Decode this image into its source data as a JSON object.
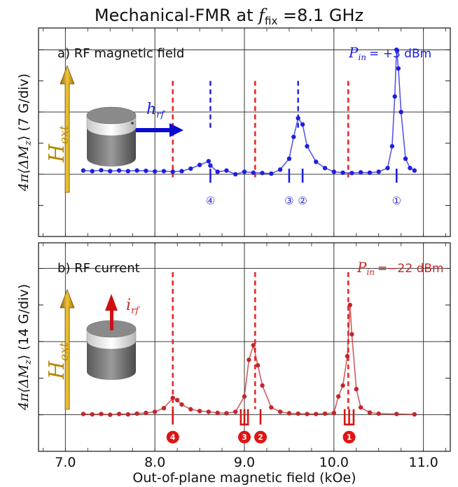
{
  "title_parts": {
    "pre": "Mechanical-FMR at ",
    "var": "f",
    "sub": "fix",
    "post": " =8.1 GHz"
  },
  "xlabel": "Out-of-plane magnetic field (kOe)",
  "x_ticks": [
    "7.0",
    "8.0",
    "9.0",
    "10.0",
    "11.0"
  ],
  "colors": {
    "blue": "#1f1fe0",
    "red": "#c0272d",
    "dashed": "#e8282a",
    "gold": "#d4a514"
  },
  "chart_data": [
    {
      "type": "line",
      "panel": "a",
      "label": "a) RF magnetic field",
      "power": {
        "var": "P",
        "sub": "in",
        "value": "= +3 dBm"
      },
      "ylabel": "4π⟨ΔM_z⟩ (7 G/div)",
      "ylabel_parts": {
        "pre": "4π⟨ΔM",
        "sub": "z",
        "post": "⟩ (7 G/div)"
      },
      "xlim": [
        6.7,
        11.3
      ],
      "ylim": [
        -2,
        4.7
      ],
      "y_unit_per_div": 7,
      "excitation_label": "h",
      "excitation_sub": "rf",
      "field_label": "H",
      "field_sub": "ext",
      "series": [
        {
          "color": "blue",
          "points": [
            [
              7.2,
              0.12
            ],
            [
              7.3,
              0.1
            ],
            [
              7.4,
              0.13
            ],
            [
              7.5,
              0.1
            ],
            [
              7.6,
              0.12
            ],
            [
              7.7,
              0.1
            ],
            [
              7.8,
              0.12
            ],
            [
              7.9,
              0.11
            ],
            [
              8.0,
              0.09
            ],
            [
              8.1,
              0.1
            ],
            [
              8.2,
              0.08
            ],
            [
              8.3,
              0.1
            ],
            [
              8.4,
              0.18
            ],
            [
              8.5,
              0.3
            ],
            [
              8.6,
              0.42
            ],
            [
              8.62,
              0.28
            ],
            [
              8.7,
              0.08
            ],
            [
              8.8,
              0.12
            ],
            [
              8.9,
              0.0
            ],
            [
              9.0,
              0.08
            ],
            [
              9.1,
              0.05
            ],
            [
              9.2,
              0.04
            ],
            [
              9.3,
              0.02
            ],
            [
              9.4,
              0.15
            ],
            [
              9.5,
              0.5
            ],
            [
              9.55,
              1.2
            ],
            [
              9.6,
              1.8
            ],
            [
              9.65,
              1.6
            ],
            [
              9.7,
              0.9
            ],
            [
              9.8,
              0.4
            ],
            [
              9.9,
              0.2
            ],
            [
              10.0,
              0.08
            ],
            [
              10.1,
              0.05
            ],
            [
              10.2,
              0.04
            ],
            [
              10.3,
              0.06
            ],
            [
              10.4,
              0.05
            ],
            [
              10.5,
              0.08
            ],
            [
              10.6,
              0.2
            ],
            [
              10.65,
              0.9
            ],
            [
              10.68,
              2.5
            ],
            [
              10.7,
              4.0
            ],
            [
              10.72,
              3.4
            ],
            [
              10.75,
              2.0
            ],
            [
              10.8,
              0.5
            ],
            [
              10.85,
              0.2
            ],
            [
              10.9,
              0.12
            ]
          ]
        }
      ],
      "mode_markers": [
        {
          "x": 8.62,
          "label": "④",
          "style": "open"
        },
        {
          "x": 9.5,
          "label": "③",
          "style": "open"
        },
        {
          "x": 9.65,
          "label": "②",
          "style": "open"
        },
        {
          "x": 10.7,
          "label": "①",
          "style": "open"
        }
      ],
      "dashed_blue": [
        8.62,
        9.6
      ],
      "dashed_red": [
        8.2,
        9.12,
        10.16
      ]
    },
    {
      "type": "line",
      "panel": "b",
      "label": "b) RF current",
      "power": {
        "var": "P",
        "sub": "in",
        "value": "=−22 dBm"
      },
      "ylabel": "4π⟨ΔM_z⟩ (14 G/div)",
      "ylabel_parts": {
        "pre": "4π⟨ΔM",
        "sub": "z",
        "post": "⟩ (14 G/div)"
      },
      "xlim": [
        6.7,
        11.3
      ],
      "ylim": [
        -1,
        4.7
      ],
      "y_unit_per_div": 14,
      "excitation_label": "i",
      "excitation_sub": "rf",
      "field_label": "H",
      "field_sub": "ext",
      "series": [
        {
          "color": "red",
          "points": [
            [
              7.2,
              0.02
            ],
            [
              7.3,
              0.01
            ],
            [
              7.4,
              0.02
            ],
            [
              7.5,
              0.0
            ],
            [
              7.6,
              0.02
            ],
            [
              7.7,
              0.01
            ],
            [
              7.8,
              0.03
            ],
            [
              7.9,
              0.05
            ],
            [
              8.0,
              0.08
            ],
            [
              8.1,
              0.18
            ],
            [
              8.2,
              0.46
            ],
            [
              8.25,
              0.4
            ],
            [
              8.3,
              0.28
            ],
            [
              8.4,
              0.15
            ],
            [
              8.5,
              0.1
            ],
            [
              8.6,
              0.08
            ],
            [
              8.7,
              0.05
            ],
            [
              8.8,
              0.04
            ],
            [
              8.9,
              0.08
            ],
            [
              9.0,
              0.5
            ],
            [
              9.05,
              1.5
            ],
            [
              9.1,
              1.9
            ],
            [
              9.15,
              1.35
            ],
            [
              9.2,
              0.8
            ],
            [
              9.3,
              0.2
            ],
            [
              9.4,
              0.08
            ],
            [
              9.5,
              0.04
            ],
            [
              9.6,
              0.03
            ],
            [
              9.7,
              0.02
            ],
            [
              9.8,
              0.02
            ],
            [
              9.9,
              0.03
            ],
            [
              10.0,
              0.05
            ],
            [
              10.05,
              0.5
            ],
            [
              10.1,
              0.8
            ],
            [
              10.15,
              1.6
            ],
            [
              10.18,
              3.0
            ],
            [
              10.2,
              2.2
            ],
            [
              10.25,
              0.7
            ],
            [
              10.3,
              0.2
            ],
            [
              10.4,
              0.06
            ],
            [
              10.5,
              0.03
            ],
            [
              10.7,
              0.02
            ],
            [
              10.9,
              0.01
            ]
          ]
        }
      ],
      "mode_markers": [
        {
          "x": 8.2,
          "label": "4",
          "style": "filled"
        },
        {
          "x": 9.0,
          "label": "3",
          "style": "filled"
        },
        {
          "x": 9.18,
          "label": "2",
          "style": "filled"
        },
        {
          "x": 10.17,
          "label": "1",
          "style": "filled"
        }
      ],
      "dashed_red": [
        8.2,
        9.12,
        10.16
      ]
    }
  ]
}
